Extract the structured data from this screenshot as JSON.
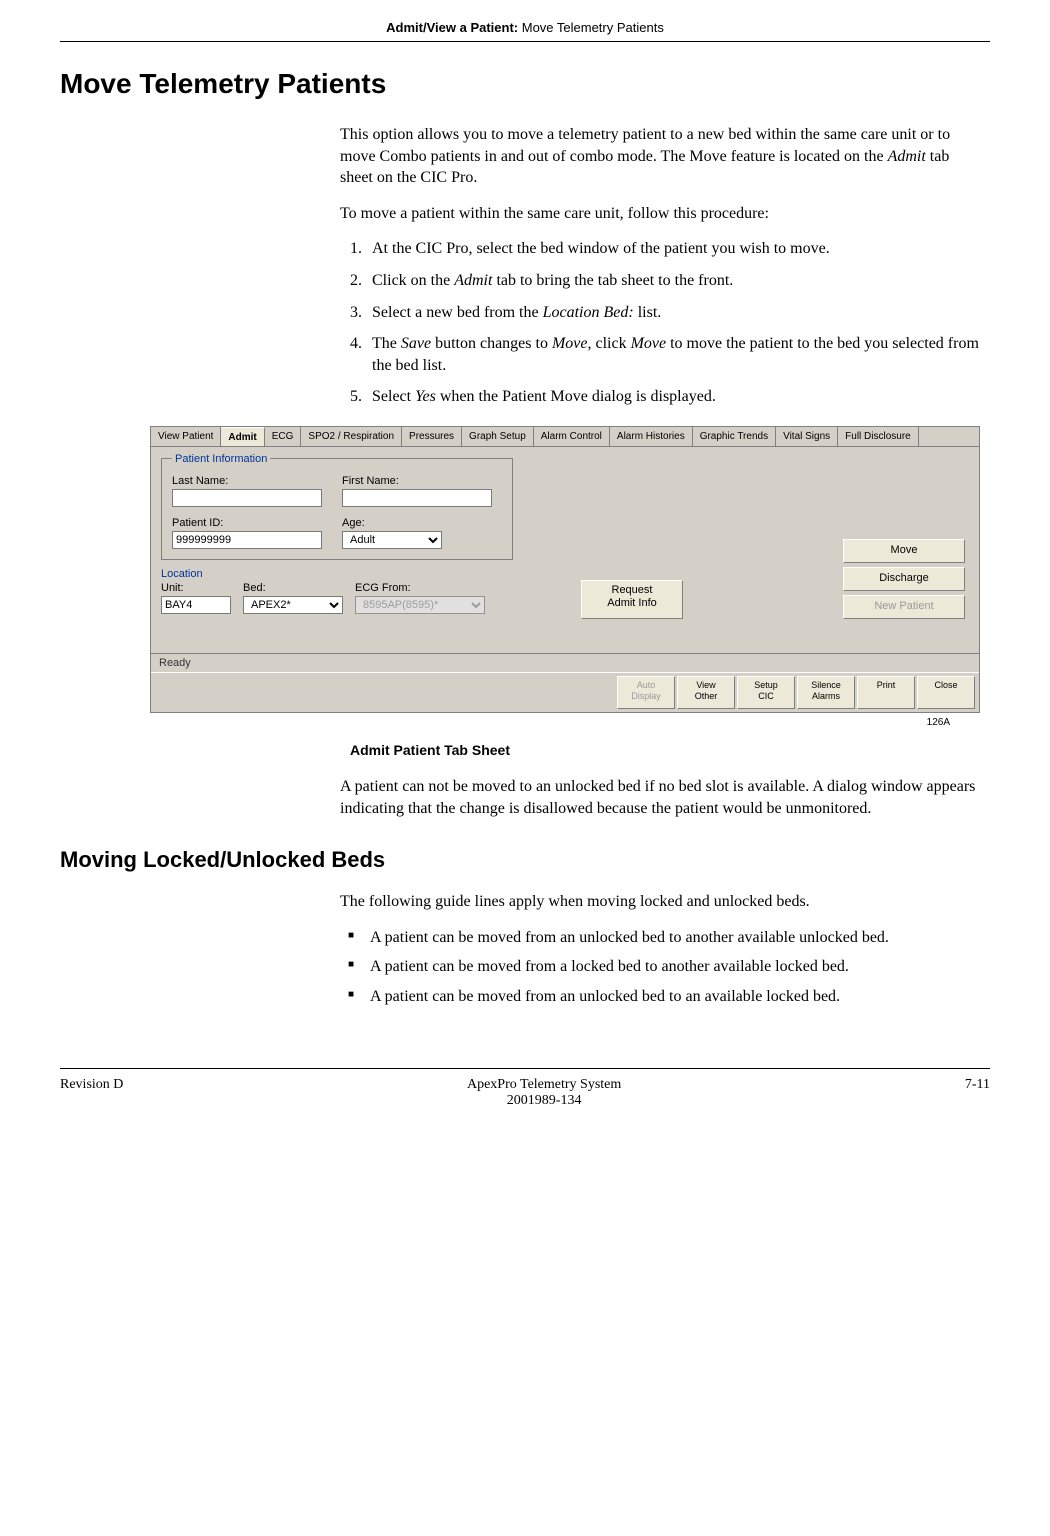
{
  "header": {
    "section_bold": "Admit/View a Patient:",
    "section_rest": " Move Telemetry Patients"
  },
  "title": "Move Telemetry Patients",
  "intro_p1_a": "This option allows you to move a telemetry patient to a new bed within the same care unit or to move Combo patients in and out of combo mode. The Move feature is located on the ",
  "intro_p1_b_italic": "Admit",
  "intro_p1_c": " tab sheet on the CIC Pro.",
  "intro_p2": "To move a patient within the same care unit, follow this procedure:",
  "steps": {
    "s1": "At the CIC Pro, select the bed window of the patient you wish to move.",
    "s2_a": "Click on the ",
    "s2_i": "Admit",
    "s2_b": " tab to bring the tab sheet to the front.",
    "s3_a": "Select a new bed from the ",
    "s3_i": "Location Bed:",
    "s3_b": " list.",
    "s4_a": "The ",
    "s4_i1": "Save",
    "s4_b": " button changes to ",
    "s4_i2": "Move",
    "s4_c": ", click ",
    "s4_i3": "Move",
    "s4_d": " to move the patient to the bed you selected from the bed list.",
    "s5_a": "Select ",
    "s5_i": "Yes",
    "s5_b": " when the Patient Move dialog is displayed."
  },
  "screenshot": {
    "tabs": [
      "View Patient",
      "Admit",
      "ECG",
      "SPO2 / Respiration",
      "Pressures",
      "Graph Setup",
      "Alarm Control",
      "Alarm Histories",
      "Graphic Trends",
      "Vital Signs",
      "Full Disclosure"
    ],
    "active_tab_index": 1,
    "patient_info_legend": "Patient Information",
    "labels": {
      "last_name": "Last Name:",
      "first_name": "First Name:",
      "patient_id": "Patient ID:",
      "age": "Age:",
      "location": "Location",
      "unit": "Unit:",
      "bed": "Bed:",
      "ecg_from": "ECG From:"
    },
    "values": {
      "last_name": "",
      "first_name": "",
      "patient_id": "999999999",
      "age": "Adult",
      "unit": "BAY4",
      "bed": "APEX2*",
      "ecg_from": "8595AP(8595)*"
    },
    "buttons": {
      "request_admit": "Request\nAdmit Info",
      "move": "Move",
      "discharge": "Discharge",
      "new_patient": "New Patient"
    },
    "status": "Ready",
    "toolbar": [
      "Auto Display",
      "View Other",
      "Setup CIC",
      "Silence Alarms",
      "Print",
      "Close"
    ],
    "toolbar_disabled_index": 0
  },
  "figure_id": "126A",
  "caption": "Admit Patient Tab Sheet",
  "after_fig_p": "A patient can not be moved to an unlocked bed if no bed slot is available. A dialog window appears indicating that the change is disallowed because the patient would be unmonitored.",
  "subtitle2": "Moving Locked/Unlocked Beds",
  "guide_intro": "The following guide lines apply when moving locked and unlocked beds.",
  "bullets": {
    "b1": "A patient can be moved from an unlocked bed to another available unlocked bed.",
    "b2": "A patient can be moved from a locked bed to another available locked bed.",
    "b3": "A patient can be moved from an unlocked bed to an available locked bed."
  },
  "footer": {
    "left": "Revision D",
    "center1": "ApexPro Telemetry System",
    "center2": "2001989-134",
    "right": "7-11"
  }
}
